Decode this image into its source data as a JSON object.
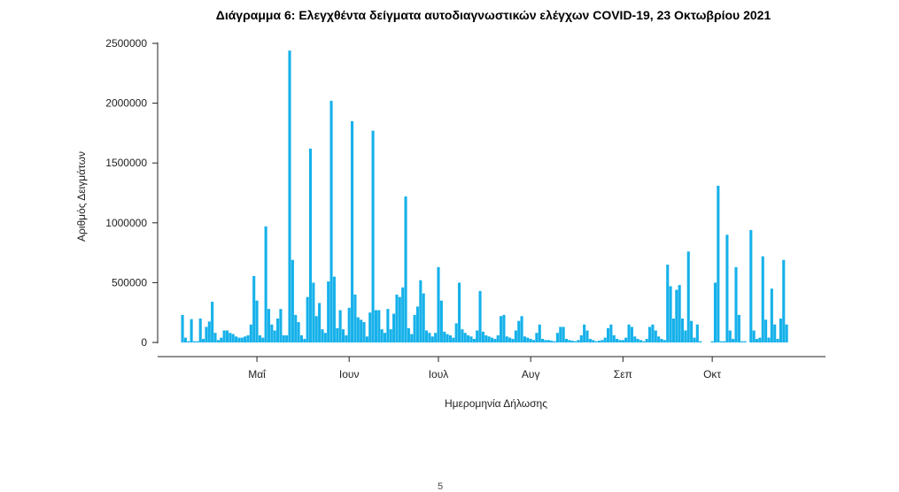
{
  "chart_data": {
    "type": "bar",
    "title": "Διάγραμμα 6: Ελεγχθέντα δείγματα αυτοδιαγνωστικών ελέγχων COVID-19, 23 Οκτωβρίου 2021",
    "xlabel": "Ημερομηνία Δήλωσης",
    "ylabel": "Αριθμός Δειγμάτων",
    "ylim": [
      0,
      2500000
    ],
    "yticks": [
      0,
      500000,
      1000000,
      1500000,
      2000000,
      2500000
    ],
    "ytick_labels": [
      "0",
      "500000",
      "1000000",
      "1500000",
      "2000000",
      "2500000"
    ],
    "xtick_labels": [
      "Μαΐ",
      "Ιουν",
      "Ιουλ",
      "Αυγ",
      "Σεπ",
      "Οκτ"
    ],
    "xtick_dates": [
      "2021-05-01",
      "2021-06-01",
      "2021-07-01",
      "2021-08-01",
      "2021-09-01",
      "2021-10-01"
    ],
    "x_start": "2021-04-06",
    "grid": false,
    "legend": "none",
    "color": "#16b1ea",
    "values": [
      230000,
      40000,
      10000,
      195000,
      10000,
      10000,
      200000,
      30000,
      130000,
      175000,
      340000,
      80000,
      20000,
      40000,
      100000,
      100000,
      80000,
      70000,
      50000,
      40000,
      40000,
      50000,
      60000,
      150000,
      555000,
      350000,
      60000,
      40000,
      970000,
      280000,
      150000,
      100000,
      200000,
      280000,
      60000,
      60000,
      2440000,
      690000,
      230000,
      170000,
      60000,
      30000,
      380000,
      1620000,
      500000,
      220000,
      330000,
      110000,
      80000,
      510000,
      2020000,
      550000,
      120000,
      270000,
      110000,
      60000,
      290000,
      1850000,
      400000,
      210000,
      190000,
      170000,
      50000,
      250000,
      1770000,
      270000,
      270000,
      110000,
      80000,
      280000,
      110000,
      240000,
      400000,
      380000,
      460000,
      1220000,
      120000,
      70000,
      230000,
      300000,
      520000,
      410000,
      100000,
      80000,
      50000,
      80000,
      630000,
      350000,
      90000,
      70000,
      60000,
      40000,
      160000,
      500000,
      110000,
      80000,
      60000,
      50000,
      30000,
      100000,
      430000,
      90000,
      60000,
      50000,
      40000,
      30000,
      60000,
      220000,
      230000,
      50000,
      40000,
      30000,
      100000,
      180000,
      220000,
      50000,
      40000,
      30000,
      20000,
      80000,
      150000,
      30000,
      20000,
      20000,
      15000,
      10000,
      80000,
      130000,
      130000,
      30000,
      20000,
      15000,
      10000,
      20000,
      60000,
      150000,
      100000,
      30000,
      20000,
      10000,
      15000,
      20000,
      40000,
      120000,
      150000,
      60000,
      30000,
      20000,
      20000,
      40000,
      150000,
      130000,
      50000,
      30000,
      20000,
      10000,
      30000,
      130000,
      150000,
      100000,
      50000,
      30000,
      20000,
      650000,
      470000,
      200000,
      440000,
      480000,
      200000,
      100000,
      760000,
      180000,
      40000,
      150000,
      10000,
      0,
      0,
      0,
      10000,
      500000,
      1310000,
      10000,
      10000,
      900000,
      100000,
      30000,
      630000,
      230000,
      10000,
      10000,
      0,
      940000,
      100000,
      30000,
      40000,
      720000,
      190000,
      40000,
      450000,
      150000,
      30000,
      200000,
      690000,
      150000
    ],
    "page_footer": "5"
  }
}
